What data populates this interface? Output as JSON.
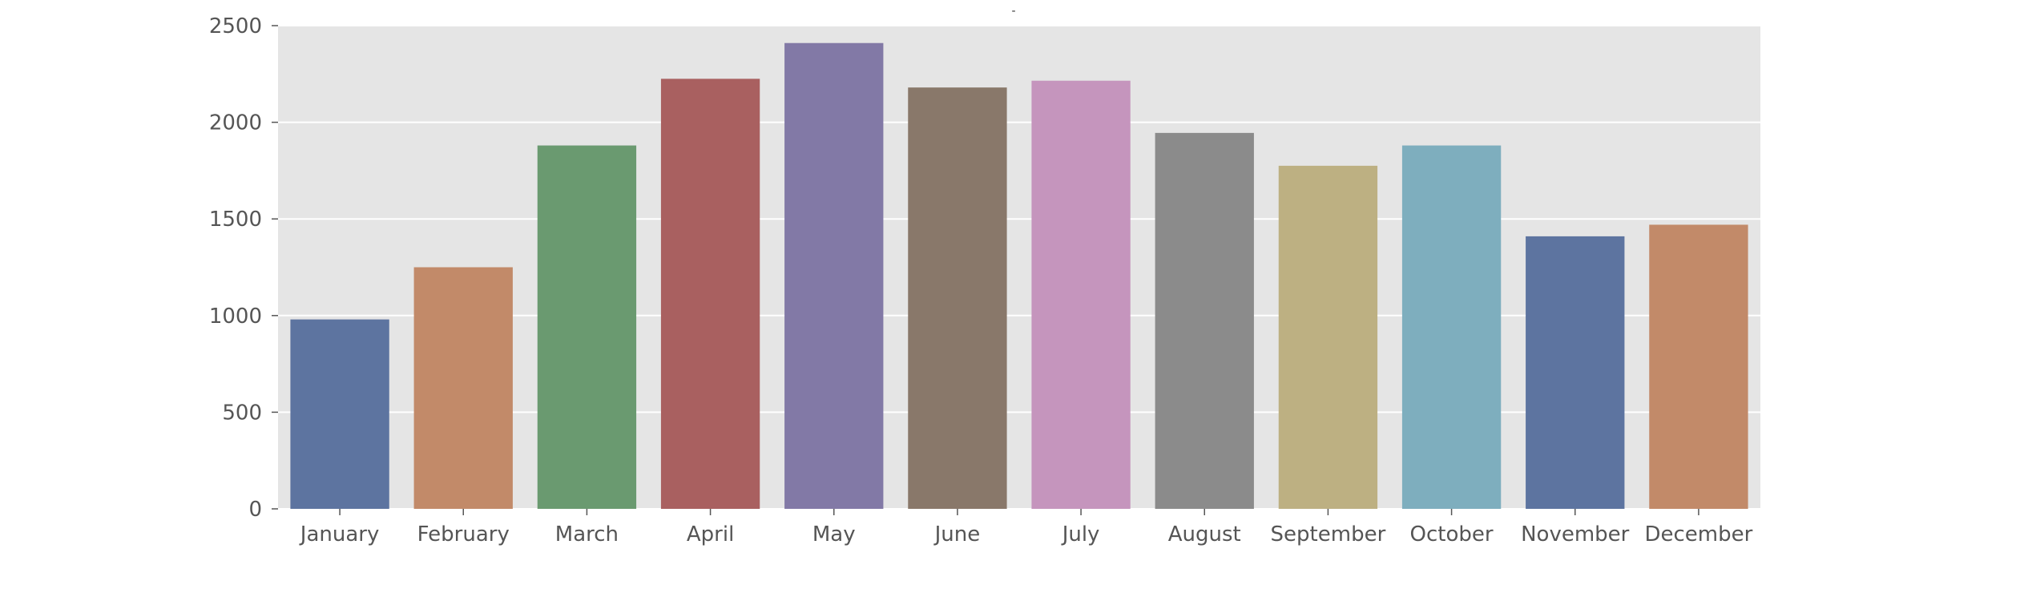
{
  "chart_data": {
    "type": "bar",
    "title": "-",
    "xlabel": "",
    "ylabel": "",
    "categories": [
      "January",
      "February",
      "March",
      "April",
      "May",
      "June",
      "July",
      "August",
      "September",
      "October",
      "November",
      "December"
    ],
    "values": [
      980,
      1250,
      1880,
      2225,
      2410,
      2180,
      2215,
      1945,
      1775,
      1880,
      1410,
      1470
    ],
    "ylim": [
      0,
      2500
    ],
    "yticks": [
      0,
      500,
      1000,
      1500,
      2000,
      2500
    ],
    "grid": true,
    "legend": "none",
    "colors": [
      "#5d74a0",
      "#c28a69",
      "#6a9a70",
      "#a96060",
      "#8279a6",
      "#89786a",
      "#c595bd",
      "#8b8b8b",
      "#bdb082",
      "#7eaebe",
      "#5d74a0",
      "#c28a69"
    ],
    "background": "#e5e5e5",
    "grid_color": "#ffffff",
    "tick_color": "#555555"
  }
}
